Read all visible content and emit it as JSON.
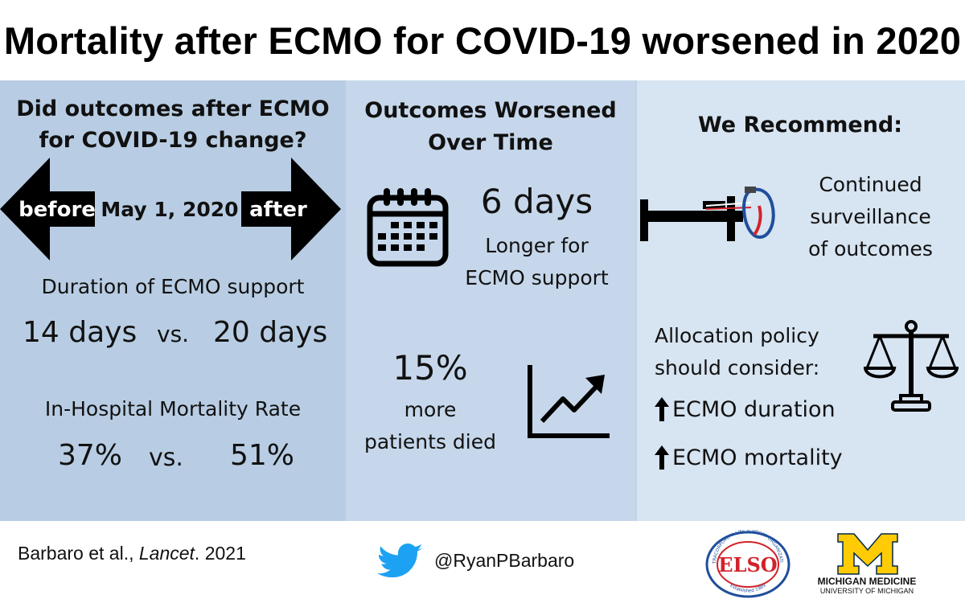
{
  "title": "Mortality after ECMO for COVID-19 worsened in 2020",
  "left": {
    "question": "Did outcomes after ECMO for COVID-19 change?",
    "before_label": "before",
    "date_label": "May 1, 2020",
    "after_label": "after",
    "duration_heading": "Duration of ECMO support",
    "duration_before": "14 days",
    "duration_vs": "vs.",
    "duration_after": "20 days",
    "mortality_heading": "In-Hospital Mortality Rate",
    "mortality_before": "37%",
    "mortality_vs": "vs.",
    "mortality_after": "51%"
  },
  "middle": {
    "heading_line1": "Outcomes Worsened",
    "heading_line2": "Over Time",
    "days_value": "6 days",
    "days_line1": "Longer for",
    "days_line2": "ECMO support",
    "pct_value": "15%",
    "pct_line1": "more",
    "pct_line2": "patients died"
  },
  "right": {
    "heading": "We Recommend:",
    "surv_line1": "Continued",
    "surv_line2": "surveillance",
    "surv_line3": "of outcomes",
    "alloc_line1": "Allocation policy",
    "alloc_line2": "should consider:",
    "item1": "ECMO duration",
    "item2": "ECMO mortality"
  },
  "footer": {
    "citation_authors": "Barbaro et al., ",
    "citation_journal": "Lancet",
    "citation_year": ". 2021",
    "twitter_handle": "@RyanPBarbaro",
    "elso_top_text": "EXTRACORPOREAL LIFE SUPPORT ORGANIZATION",
    "elso_bottom_text": "Established 1989",
    "elso_letters": "ELSO",
    "mm_letter": "M",
    "mm_name": "MICHIGAN MEDICINE",
    "mm_university": "UNIVERSITY OF MICHIGAN"
  },
  "colors": {
    "left_panel": "#b8cde3",
    "middle_panel": "#c6d7eb",
    "right_panel": "#d7e4f1",
    "twitter_blue": "#1da1f2",
    "michigan_maize": "#ffcb05",
    "elso_red": "#d2232a",
    "elso_blue": "#1f4e9c"
  }
}
